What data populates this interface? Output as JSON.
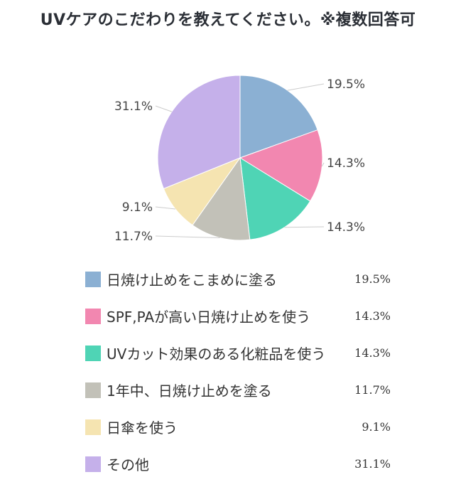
{
  "title": "UVケアのこだわりを教えてください。※複数回答可",
  "chart_data": {
    "type": "pie",
    "categories": [
      "日焼け止めをこまめに塗る",
      "SPF,PAが高い日焼け止めを使う",
      "UVカット効果のある化粧品を使う",
      "1年中、日焼け止めを塗る",
      "日傘を使う",
      "その他"
    ],
    "values": [
      19.5,
      14.3,
      14.3,
      11.7,
      9.1,
      31.1
    ],
    "labels": [
      "19.5%",
      "14.3%",
      "14.3%",
      "11.7%",
      "9.1%",
      "31.1%"
    ],
    "colors": [
      "#8bb0d3",
      "#f287b0",
      "#4fd4b5",
      "#c2c1b8",
      "#f5e4b1",
      "#c5b0ea"
    ]
  }
}
